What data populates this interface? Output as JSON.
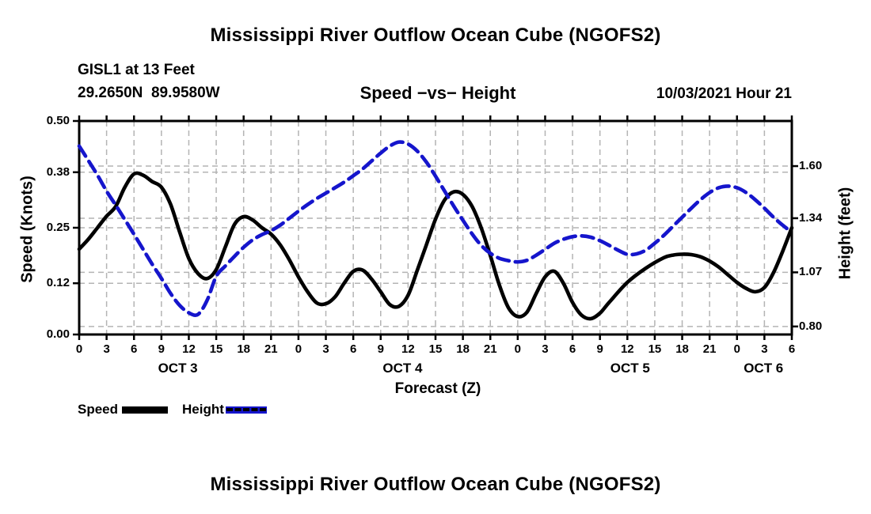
{
  "header": {
    "title": "Mississippi River Outflow Ocean Cube (NGOFS2)",
    "station_line": "GISL1 at 13 Feet",
    "coords_line": "29.2650N  89.9580W",
    "subtitle": "Speed −vs− Height",
    "datetime_label": "10/03/2021 Hour 21"
  },
  "footer": {
    "title": "Mississippi River Outflow Ocean Cube (NGOFS2)"
  },
  "legend": {
    "speed_label": "Speed",
    "height_label": "Height",
    "speed_color": "#000000",
    "height_color": "#1515cc"
  },
  "chart_data": {
    "type": "line",
    "title": "Speed −vs− Height",
    "xlabel": "Forecast (Z)",
    "grid": {
      "color": "#b4b4b4",
      "on": true
    },
    "x_axis": {
      "label": "Forecast (Z)",
      "range": [
        0,
        78
      ],
      "tick_step": 3,
      "tick_labels": [
        "0",
        "3",
        "6",
        "9",
        "12",
        "15",
        "18",
        "21",
        "0",
        "3",
        "6",
        "9",
        "12",
        "15",
        "18",
        "21",
        "0",
        "3",
        "6",
        "9",
        "12",
        "15",
        "18",
        "21",
        "0",
        "3",
        "6"
      ],
      "day_labels": [
        {
          "label": "OCT 3",
          "hour": 10.8
        },
        {
          "label": "OCT 4",
          "hour": 35.4
        },
        {
          "label": "OCT 5",
          "hour": 60.3
        },
        {
          "label": "OCT 6",
          "hour": 74.9
        }
      ]
    },
    "left_axis": {
      "label": "Speed (Knots)",
      "range": [
        0,
        0.5
      ],
      "ticks": [
        0,
        0.12,
        0.25,
        0.38,
        0.5
      ],
      "tick_labels": [
        "0.00",
        "0.12",
        "0.25",
        "0.38",
        "0.50"
      ],
      "grid_values": [
        0.12,
        0.25,
        0.38
      ]
    },
    "right_axis": {
      "label": "Height (feet)",
      "range": [
        0.76,
        1.825
      ],
      "ticks": [
        0.8,
        1.07,
        1.34,
        1.6
      ],
      "tick_labels": [
        "0.80",
        "1.07",
        "1.34",
        "1.60"
      ]
    },
    "series": [
      {
        "name": "Speed",
        "axis": "left",
        "units": "knots",
        "color": "#000000",
        "style": "solid",
        "points": [
          [
            0,
            0.2
          ],
          [
            1,
            0.223
          ],
          [
            2,
            0.25
          ],
          [
            3,
            0.277
          ],
          [
            4,
            0.3
          ],
          [
            5,
            0.345
          ],
          [
            6,
            0.376
          ],
          [
            7,
            0.373
          ],
          [
            8,
            0.358
          ],
          [
            9,
            0.345
          ],
          [
            10,
            0.305
          ],
          [
            11,
            0.24
          ],
          [
            12,
            0.178
          ],
          [
            13,
            0.143
          ],
          [
            14,
            0.131
          ],
          [
            15,
            0.152
          ],
          [
            16,
            0.205
          ],
          [
            17,
            0.258
          ],
          [
            18,
            0.276
          ],
          [
            19,
            0.268
          ],
          [
            20,
            0.25
          ],
          [
            21,
            0.235
          ],
          [
            22,
            0.21
          ],
          [
            23,
            0.175
          ],
          [
            24,
            0.135
          ],
          [
            25,
            0.1
          ],
          [
            26,
            0.074
          ],
          [
            27,
            0.072
          ],
          [
            28,
            0.088
          ],
          [
            29,
            0.12
          ],
          [
            30,
            0.148
          ],
          [
            31,
            0.151
          ],
          [
            32,
            0.13
          ],
          [
            33,
            0.1
          ],
          [
            34,
            0.07
          ],
          [
            35,
            0.066
          ],
          [
            36,
            0.092
          ],
          [
            37,
            0.15
          ],
          [
            38,
            0.21
          ],
          [
            39,
            0.27
          ],
          [
            40,
            0.315
          ],
          [
            41,
            0.334
          ],
          [
            42,
            0.328
          ],
          [
            43,
            0.3
          ],
          [
            44,
            0.25
          ],
          [
            45,
            0.185
          ],
          [
            46,
            0.115
          ],
          [
            47,
            0.062
          ],
          [
            48,
            0.042
          ],
          [
            49,
            0.052
          ],
          [
            50,
            0.095
          ],
          [
            51,
            0.135
          ],
          [
            52,
            0.148
          ],
          [
            53,
            0.12
          ],
          [
            54,
            0.075
          ],
          [
            55,
            0.045
          ],
          [
            56,
            0.037
          ],
          [
            57,
            0.05
          ],
          [
            58,
            0.075
          ],
          [
            60,
            0.122
          ],
          [
            62,
            0.155
          ],
          [
            64,
            0.18
          ],
          [
            65,
            0.186
          ],
          [
            66,
            0.188
          ],
          [
            67,
            0.187
          ],
          [
            68,
            0.182
          ],
          [
            69,
            0.172
          ],
          [
            70,
            0.158
          ],
          [
            71,
            0.14
          ],
          [
            72,
            0.122
          ],
          [
            73,
            0.108
          ],
          [
            74,
            0.1
          ],
          [
            75,
            0.11
          ],
          [
            76,
            0.145
          ],
          [
            77,
            0.195
          ],
          [
            78,
            0.25
          ]
        ]
      },
      {
        "name": "Height",
        "axis": "right",
        "units": "feet",
        "color": "#1515cc",
        "style": "dashed",
        "points": [
          [
            0,
            1.7
          ],
          [
            1,
            1.628
          ],
          [
            2,
            1.555
          ],
          [
            3,
            1.475
          ],
          [
            4,
            1.405
          ],
          [
            5,
            1.333
          ],
          [
            6,
            1.26
          ],
          [
            7,
            1.185
          ],
          [
            8,
            1.11
          ],
          [
            9,
            1.04
          ],
          [
            10,
            0.965
          ],
          [
            11,
            0.905
          ],
          [
            12,
            0.868
          ],
          [
            13,
            0.86
          ],
          [
            14,
            0.93
          ],
          [
            15,
            1.05
          ],
          [
            16,
            1.102
          ],
          [
            17,
            1.15
          ],
          [
            18,
            1.195
          ],
          [
            19,
            1.232
          ],
          [
            20,
            1.258
          ],
          [
            21,
            1.278
          ],
          [
            22,
            1.305
          ],
          [
            23,
            1.34
          ],
          [
            24,
            1.375
          ],
          [
            25,
            1.408
          ],
          [
            26,
            1.438
          ],
          [
            27,
            1.465
          ],
          [
            28,
            1.492
          ],
          [
            29,
            1.52
          ],
          [
            30,
            1.552
          ],
          [
            31,
            1.585
          ],
          [
            32,
            1.625
          ],
          [
            33,
            1.665
          ],
          [
            34,
            1.7
          ],
          [
            35,
            1.72
          ],
          [
            36,
            1.71
          ],
          [
            37,
            1.675
          ],
          [
            38,
            1.62
          ],
          [
            39,
            1.55
          ],
          [
            40,
            1.475
          ],
          [
            41,
            1.4
          ],
          [
            42,
            1.33
          ],
          [
            43,
            1.262
          ],
          [
            44,
            1.205
          ],
          [
            45,
            1.165
          ],
          [
            46,
            1.14
          ],
          [
            47,
            1.128
          ],
          [
            48,
            1.122
          ],
          [
            49,
            1.13
          ],
          [
            50,
            1.155
          ],
          [
            51,
            1.185
          ],
          [
            52,
            1.215
          ],
          [
            53,
            1.235
          ],
          [
            54,
            1.248
          ],
          [
            55,
            1.252
          ],
          [
            56,
            1.245
          ],
          [
            57,
            1.228
          ],
          [
            58,
            1.205
          ],
          [
            59,
            1.18
          ],
          [
            60,
            1.16
          ],
          [
            61,
            1.162
          ],
          [
            62,
            1.18
          ],
          [
            63,
            1.215
          ],
          [
            64,
            1.255
          ],
          [
            65,
            1.3
          ],
          [
            66,
            1.345
          ],
          [
            67,
            1.39
          ],
          [
            68,
            1.432
          ],
          [
            69,
            1.468
          ],
          [
            70,
            1.492
          ],
          [
            71,
            1.5
          ],
          [
            72,
            1.492
          ],
          [
            73,
            1.468
          ],
          [
            74,
            1.432
          ],
          [
            75,
            1.39
          ],
          [
            76,
            1.345
          ],
          [
            77,
            1.305
          ],
          [
            78,
            1.27
          ]
        ]
      }
    ]
  }
}
